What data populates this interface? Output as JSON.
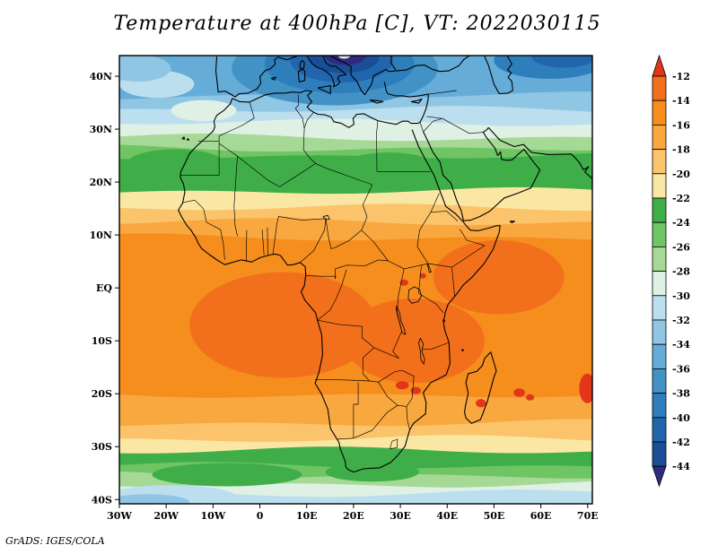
{
  "header": {
    "title": "Temperature at 400hPa [C], VT: 2022030115"
  },
  "footer": {
    "credit": "GrADS: IGES/COLA"
  },
  "chart_data": {
    "type": "heatmap",
    "title": "Temperature at 400hPa [C], VT: 2022030115",
    "variable": "Temperature",
    "level": "400hPa",
    "units": "C",
    "valid_time": "2022030115",
    "region": "Africa, Mediterranean and Middle East",
    "grid": false,
    "legend_position": "right",
    "lon_range": [
      -30,
      71
    ],
    "lat_range": [
      -40.8,
      43.9
    ],
    "x_tick_labels": [
      "30W",
      "20W",
      "10W",
      "0",
      "10E",
      "20E",
      "30E",
      "40E",
      "50E",
      "60E",
      "70E"
    ],
    "x_tick_lons": [
      -30,
      -20,
      -10,
      0,
      10,
      20,
      30,
      40,
      50,
      60,
      70
    ],
    "y_tick_labels": [
      "40N",
      "30N",
      "20N",
      "10N",
      "EQ",
      "10S",
      "20S",
      "30S",
      "40S"
    ],
    "y_tick_lats": [
      40,
      30,
      20,
      10,
      0,
      -10,
      -20,
      -30,
      -40
    ],
    "colorbar": {
      "levels": [
        -12,
        -14,
        -16,
        -18,
        -20,
        -22,
        -24,
        -26,
        -28,
        -30,
        -32,
        -34,
        -36,
        -38,
        -40,
        -42,
        -44
      ],
      "segment_colors": [
        "#F2701B",
        "#F68E1E",
        "#F9A840",
        "#FBC36A",
        "#FBE7A4",
        "#3FAE49",
        "#6FC564",
        "#A6D996",
        "#DFF1E4",
        "#BCDFEF",
        "#8FC6E4",
        "#66ACD8",
        "#4292C6",
        "#2E7EBC",
        "#2166AC",
        "#1A4E96"
      ],
      "above_color": "#E2361B",
      "below_color": "#2D2B7F"
    },
    "field_bands": [
      {
        "boundary_lat": 43.9,
        "temp": "-34 to -36",
        "color": "#66ACD8"
      },
      {
        "boundary_lat": 36.3,
        "temp": "-32 to -34",
        "color": "#8FC6E4"
      },
      {
        "boundary_lat": 33.6,
        "temp": "-30 to -32",
        "color": "#BCDFEF"
      },
      {
        "boundary_lat": 31.2,
        "temp": "-28 to -30",
        "color": "#DFF1E4"
      },
      {
        "boundary_lat": 28.4,
        "temp": "-26 to -28",
        "color": "#A6D996"
      },
      {
        "boundary_lat": 26.4,
        "temp": "-24 to -26",
        "color": "#6FC564"
      },
      {
        "boundary_lat": 24.9,
        "temp": "-22 to -24",
        "color": "#3FAE49"
      },
      {
        "boundary_lat": 18.2,
        "temp": "-20 to -22",
        "color": "#FBE7A4"
      },
      {
        "boundary_lat": 15.1,
        "temp": "-18 to -20",
        "color": "#FBC36A"
      },
      {
        "boundary_lat": 12.4,
        "temp": "-16 to -18",
        "color": "#F9A840"
      },
      {
        "boundary_lat": 9.5,
        "temp": "-14 to -16",
        "color": "#F68E1E"
      },
      {
        "boundary_lat": -20.2,
        "temp": "-16 to -18",
        "color": "#F9A840"
      },
      {
        "boundary_lat": -25.6,
        "temp": "-18 to -20",
        "color": "#FBC36A"
      },
      {
        "boundary_lat": -28.6,
        "temp": "-20 to -22",
        "color": "#FBE7A4"
      },
      {
        "boundary_lat": -30.8,
        "temp": "-22 to -24",
        "color": "#3FAE49"
      },
      {
        "boundary_lat": -33.7,
        "temp": "-24 to -26",
        "color": "#6FC564"
      },
      {
        "boundary_lat": -35.4,
        "temp": "-26 to -28",
        "color": "#A6D996"
      },
      {
        "boundary_lat": -37.1,
        "temp": "-28 to -30",
        "color": "#DFF1E4"
      },
      {
        "boundary_lat": -38.9,
        "temp": "-30 to -32",
        "color": "#BCDFEF"
      }
    ],
    "features": [
      {
        "name": "cold-core-outer",
        "lon": 16,
        "lat": 41.5,
        "rlon": 22,
        "rlat": 7,
        "color": "#4292C6"
      },
      {
        "name": "cold-core-mid",
        "lon": 17,
        "lat": 42.3,
        "rlon": 16,
        "rlat": 5.5,
        "color": "#2E7EBC"
      },
      {
        "name": "cold-core-inner",
        "lon": 17.5,
        "lat": 43.0,
        "rlon": 11,
        "rlat": 4.2,
        "color": "#2166AC"
      },
      {
        "name": "cold-core-deep",
        "lon": 18,
        "lat": 43.6,
        "rlon": 7.5,
        "rlat": 3.0,
        "color": "#1A4E96"
      },
      {
        "name": "cold-core-min",
        "lon": 18.3,
        "lat": 44.1,
        "rlon": 4.5,
        "rlat": 2.0,
        "color": "#2D2B7F"
      },
      {
        "name": "cold-core-spot",
        "lon": 18.0,
        "lat": 44.0,
        "rlon": 1.4,
        "rlat": 0.7,
        "color": "#E8E8E8"
      },
      {
        "name": "cold-patch-northeast",
        "lon": 62,
        "lat": 43.0,
        "rlon": 12,
        "rlat": 3.5,
        "color": "#2E7EBC"
      },
      {
        "name": "cold-patch-northeast-2",
        "lon": 65,
        "lat": 43.8,
        "rlon": 7,
        "rlat": 2.2,
        "color": "#2166AC"
      },
      {
        "name": "mild-patch-atlantic",
        "lon": -22,
        "lat": 38.5,
        "rlon": 8,
        "rlat": 2.6,
        "color": "#BCDFEF"
      },
      {
        "name": "mild-patch-atlantic-2",
        "lon": -26,
        "lat": 41.5,
        "rlon": 7,
        "rlat": 2.5,
        "color": "#8FC6E4"
      },
      {
        "name": "pale-patch-morocco",
        "lon": -12,
        "lat": 33.5,
        "rlon": 7,
        "rlat": 2.0,
        "color": "#DFF1E4"
      },
      {
        "name": "green-bulge-west",
        "lon": -18,
        "lat": 23.8,
        "rlon": 10,
        "rlat": 2.4,
        "color": "#3FAE49"
      },
      {
        "name": "green-bulge-sudan",
        "lon": 27.5,
        "lat": 23.0,
        "rlon": 10,
        "rlat": 2.6,
        "color": "#3FAE49"
      },
      {
        "name": "warm-patch-central",
        "lon": 5,
        "lat": -7,
        "rlon": 20,
        "rlat": 10,
        "color": "#F2701B"
      },
      {
        "name": "warm-patch-southeast",
        "lon": 33,
        "lat": -10,
        "rlon": 15,
        "rlat": 8,
        "color": "#F2701B"
      },
      {
        "name": "warm-patch-east",
        "lon": 51,
        "lat": 2,
        "rlon": 14,
        "rlat": 7,
        "color": "#F2701B"
      },
      {
        "name": "hot-spot-uganda",
        "lon": 30.8,
        "lat": 1.0,
        "rlon": 0.9,
        "rlat": 0.6,
        "color": "#E2361B"
      },
      {
        "name": "hot-spot-kenya",
        "lon": 34.8,
        "lat": 2.3,
        "rlon": 0.7,
        "rlat": 0.5,
        "color": "#E2361B"
      },
      {
        "name": "hot-spot-zimbabwe",
        "lon": 30.4,
        "lat": -18.4,
        "rlon": 1.4,
        "rlat": 0.8,
        "color": "#E2361B"
      },
      {
        "name": "hot-spot-mozambique",
        "lon": 33.3,
        "lat": -19.4,
        "rlon": 1.1,
        "rlat": 0.7,
        "color": "#E2361B"
      },
      {
        "name": "hot-spot-madagascar",
        "lon": 47.2,
        "lat": -21.8,
        "rlon": 1.1,
        "rlat": 0.8,
        "color": "#E2361B"
      },
      {
        "name": "hot-spot-indian-ocean-1",
        "lon": 55.4,
        "lat": -19.8,
        "rlon": 1.2,
        "rlat": 0.8,
        "color": "#E2361B"
      },
      {
        "name": "hot-spot-indian-ocean-2",
        "lon": 57.7,
        "lat": -20.7,
        "rlon": 0.9,
        "rlat": 0.6,
        "color": "#E2361B"
      },
      {
        "name": "hot-blob-east-edge",
        "lon": 69.9,
        "lat": -19.0,
        "rlon": 1.7,
        "rlat": 2.8,
        "color": "#E2361B"
      },
      {
        "name": "green-tongue-south-west",
        "lon": -7,
        "lat": -35.3,
        "rlon": 16,
        "rlat": 2.2,
        "color": "#3FAE49"
      },
      {
        "name": "green-tongue-south-east",
        "lon": 24,
        "lat": -34.8,
        "rlon": 10,
        "rlat": 1.8,
        "color": "#3FAE49"
      },
      {
        "name": "pale-blue-southwest",
        "lon": -19,
        "lat": -39.5,
        "rlon": 14,
        "rlat": 2.2,
        "color": "#BCDFEF"
      },
      {
        "name": "blue-southwest-corner",
        "lon": -24,
        "lat": -40.5,
        "rlon": 9,
        "rlat": 1.5,
        "color": "#8FC6E4"
      },
      {
        "name": "pale-blue-southeast",
        "lon": 59,
        "lat": -40.3,
        "rlon": 12,
        "rlat": 1.7,
        "color": "#BCDFEF"
      }
    ]
  }
}
